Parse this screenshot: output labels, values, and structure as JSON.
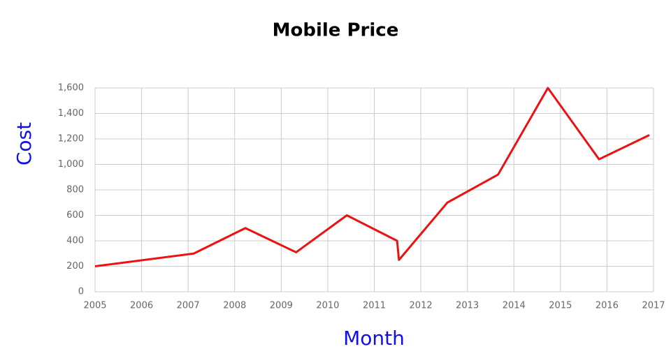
{
  "chart_data": {
    "type": "line",
    "title": "Mobile Price",
    "x_label": "Month",
    "y_label": "Cost",
    "x": [
      2005.0,
      2007.12,
      2008.23,
      2009.32,
      2010.41,
      2011.49,
      2011.53,
      2012.57,
      2013.66,
      2014.73,
      2015.83,
      2016.91
    ],
    "series": [
      {
        "name": "Cost",
        "color": "#ee1111",
        "values": [
          200,
          300,
          500,
          310,
          600,
          400,
          250,
          700,
          920,
          1600,
          1040,
          1230
        ]
      }
    ],
    "xlim": [
      2005,
      2017
    ],
    "xticks": [
      2005,
      2006,
      2007,
      2008,
      2009,
      2010,
      2011,
      2012,
      2013,
      2014,
      2015,
      2016,
      2017
    ],
    "ylim": [
      0,
      1600
    ],
    "yticks": [
      0,
      200,
      400,
      600,
      800,
      {
        "value": 1000,
        "label": "1,000"
      },
      {
        "value": 1200,
        "label": "1,200"
      },
      {
        "value": 1400,
        "label": "1,400"
      },
      {
        "value": 1600,
        "label": "1,600"
      }
    ],
    "grid": true
  }
}
